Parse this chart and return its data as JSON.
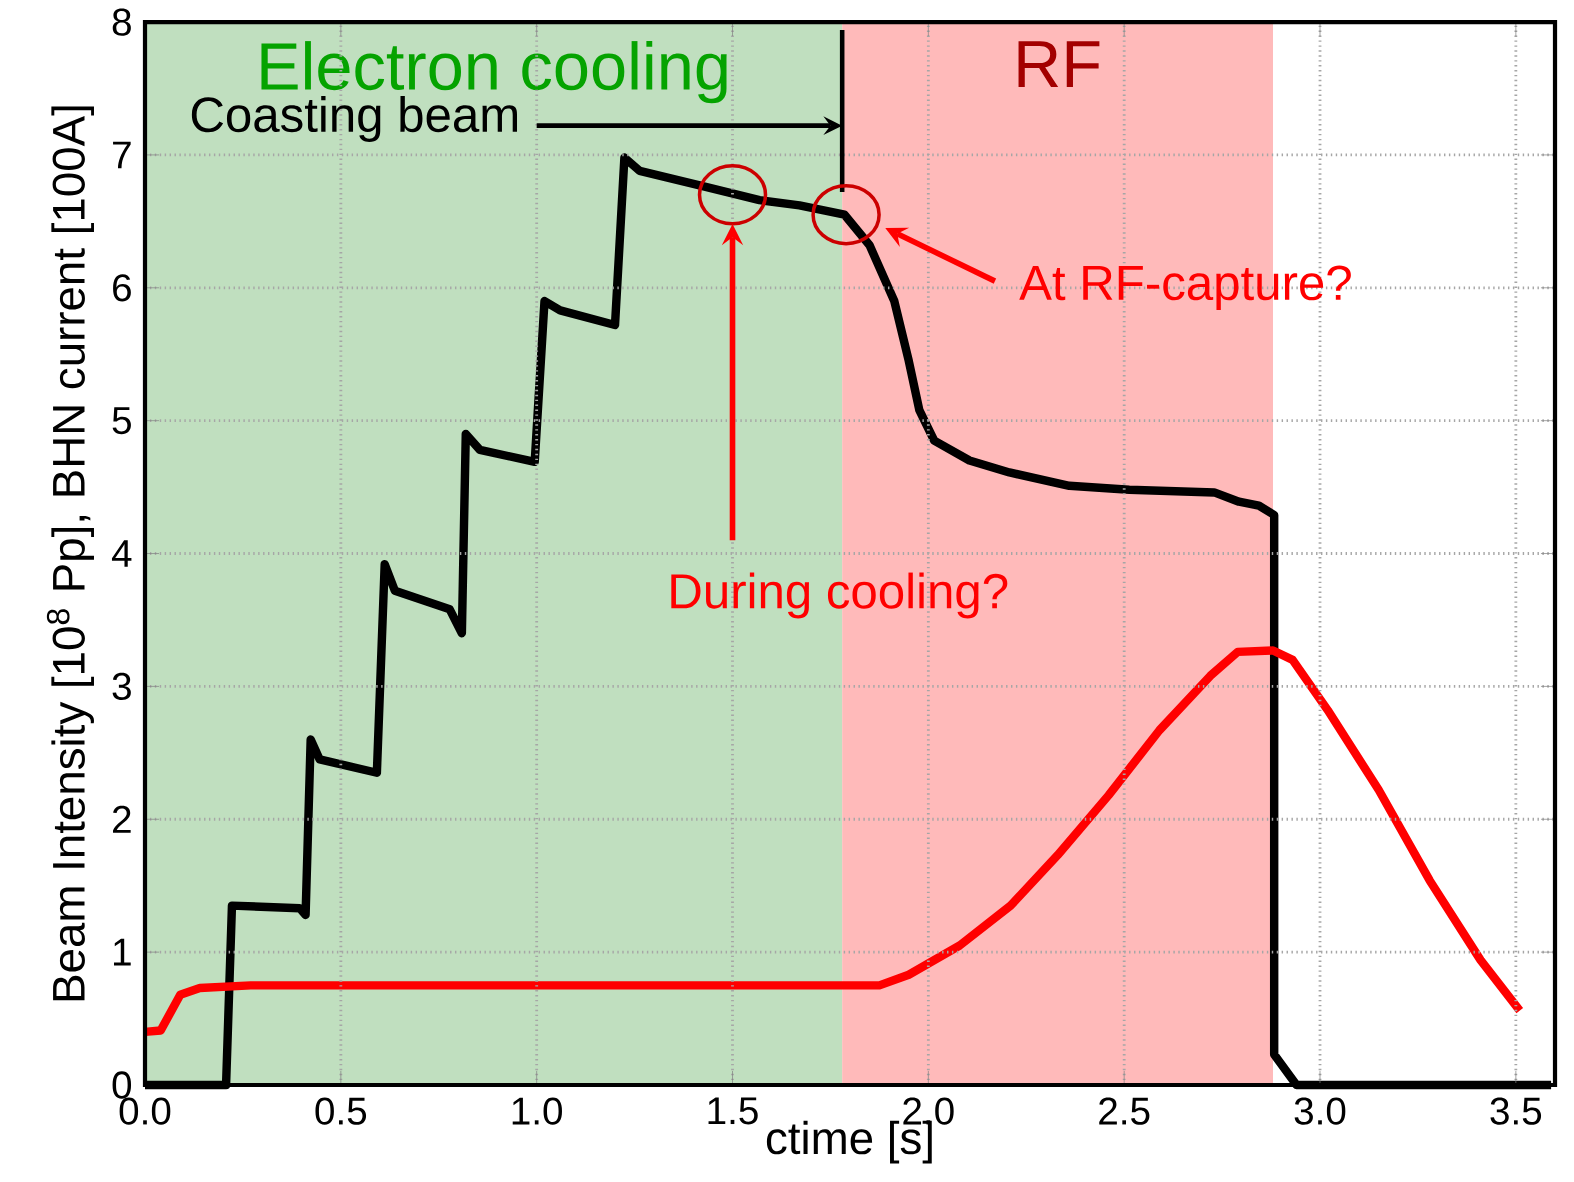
{
  "chart_data": {
    "type": "line",
    "xlabel": "ctime [s]",
    "ylabel": "Beam Intensity [10$^{8}$ Pp], BHN current [100A]",
    "xlim": [
      0,
      3.6
    ],
    "ylim": [
      0,
      8
    ],
    "xticks": [
      {
        "value": 0,
        "label": "0.0"
      },
      {
        "value": 0.5,
        "label": "0.5"
      },
      {
        "value": 1,
        "label": "1.0"
      },
      {
        "value": 1.5,
        "label": "1.5"
      },
      {
        "value": 2,
        "label": "2.0"
      },
      {
        "value": 2.5,
        "label": "2.5"
      },
      {
        "value": 3,
        "label": "3.0"
      },
      {
        "value": 3.5,
        "label": "3.5"
      }
    ],
    "yticks": [
      0,
      1,
      2,
      3,
      4,
      5,
      6,
      7,
      8
    ],
    "grid": true,
    "bands": [
      {
        "axis": "x",
        "from": 0,
        "to": 1.78,
        "label": "Electron cooling",
        "color": "#c0dfbf"
      },
      {
        "axis": "x",
        "from": 1.78,
        "to": 2.88,
        "label": "RF",
        "color": "#ffbaba"
      }
    ],
    "series": [
      {
        "color": "#000000",
        "x": [
          0,
          0.207,
          0.222,
          0.395,
          0.41,
          0.423,
          0.446,
          0.592,
          0.612,
          0.638,
          0.778,
          0.809,
          0.819,
          0.855,
          0.995,
          1.02,
          1.06,
          1.2,
          1.224,
          1.263,
          1.416,
          1.569,
          1.671,
          1.786,
          1.85,
          1.913,
          1.95,
          1.977,
          2.015,
          2.105,
          2.207,
          2.36,
          2.513,
          2.73,
          2.793,
          2.844,
          2.883,
          2.883,
          2.94,
          3.59
        ],
        "values": [
          0,
          0,
          1.35,
          1.33,
          1.28,
          2.6,
          2.45,
          2.35,
          3.92,
          3.72,
          3.58,
          3.4,
          4.9,
          4.78,
          4.69,
          5.9,
          5.83,
          5.72,
          6.98,
          6.88,
          6.77,
          6.66,
          6.62,
          6.55,
          6.32,
          5.9,
          5.45,
          5.08,
          4.85,
          4.7,
          4.61,
          4.51,
          4.48,
          4.46,
          4.39,
          4.36,
          4.29,
          0.23,
          0,
          0
        ]
      },
      {
        "color": "#ff0000",
        "x": [
          0,
          0.04,
          0.09,
          0.14,
          0.27,
          1.875,
          1.95,
          2.08,
          2.21,
          2.33,
          2.46,
          2.59,
          2.72,
          2.79,
          2.88,
          2.93,
          3.02,
          3.15,
          3.28,
          3.41,
          3.51
        ],
        "values": [
          0.4,
          0.41,
          0.68,
          0.73,
          0.75,
          0.75,
          0.83,
          1.05,
          1.35,
          1.73,
          2.18,
          2.67,
          3.08,
          3.26,
          3.27,
          3.2,
          2.82,
          2.22,
          1.54,
          0.94,
          0.56
        ]
      }
    ],
    "annotations": [
      "Coasting beam",
      "During cooling?",
      "At RF-capture?"
    ]
  }
}
